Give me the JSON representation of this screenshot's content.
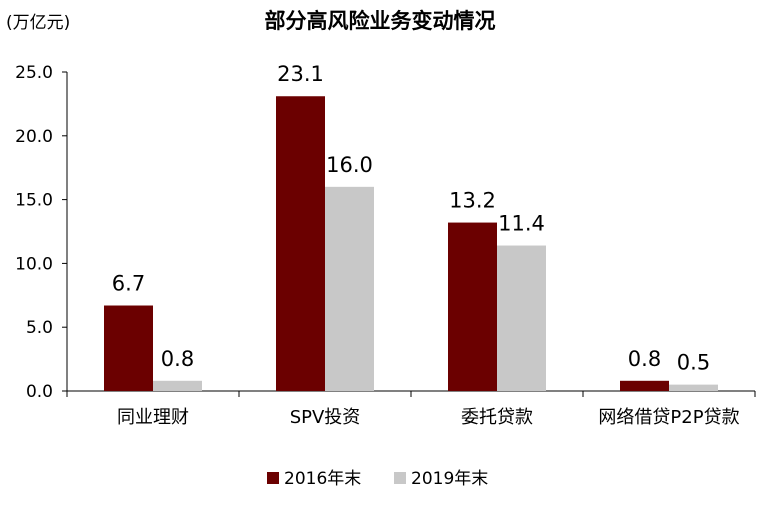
{
  "chart_data": {
    "type": "bar",
    "title": "部分高风险业务变动情况",
    "ylabel": "(万亿元)",
    "xlabel": "",
    "categories": [
      "同业理财",
      "SPV投资",
      "委托贷款",
      "网络借贷P2P贷款"
    ],
    "series": [
      {
        "name": "2016年末",
        "values": [
          6.7,
          23.1,
          13.2,
          0.8
        ],
        "labels": [
          "6.7",
          "23.1",
          "13.2",
          "0.8"
        ],
        "color": "#6b0000"
      },
      {
        "name": "2019年末",
        "values": [
          0.8,
          16.0,
          11.4,
          0.5
        ],
        "labels": [
          "0.8",
          "16.0",
          "11.4",
          "0.5"
        ],
        "color": "#c8c8c8"
      }
    ],
    "ylim": [
      0,
      25
    ],
    "yticks": [
      "0.0",
      "5.0",
      "10.0",
      "15.0",
      "20.0",
      "25.0"
    ],
    "ytick_values": [
      0,
      5,
      10,
      15,
      20,
      25
    ],
    "grid": false,
    "legend": "bottom"
  }
}
